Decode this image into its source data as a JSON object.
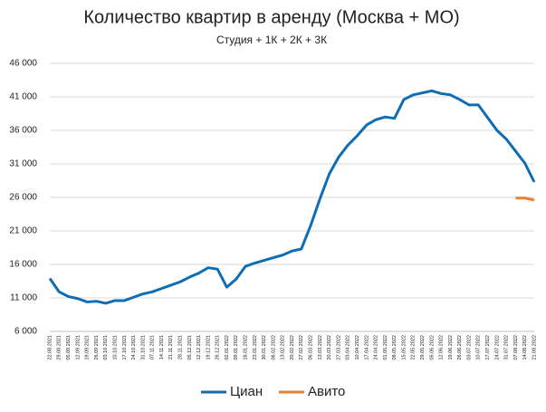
{
  "chart_data": {
    "type": "line",
    "title": "Количество квартир в аренду (Москва + МО)",
    "subtitle": "Студия + 1К + 2К + 3К",
    "categories": [
      "22.08.2021",
      "29.08.2021",
      "05.09.2021",
      "12.09.2021",
      "19.09.2021",
      "26.09.2021",
      "03.10.2021",
      "10.10.2021",
      "17.10.2021",
      "24.10.2021",
      "31.10.2021",
      "07.11.2021",
      "14.11.2021",
      "21.11.2021",
      "28.11.2021",
      "05.12.2021",
      "12.12.2021",
      "19.12.2021",
      "26.12.2021",
      "02.01.2022",
      "09.01.2022",
      "16.01.2022",
      "23.01.2022",
      "30.01.2022",
      "06.02.2022",
      "13.02.2022",
      "20.02.2022",
      "27.02.2022",
      "06.03.2022",
      "13.03.2022",
      "20.03.2022",
      "27.03.2022",
      "03.04.2022",
      "10.04.2022",
      "17.04.2022",
      "24.04.2022",
      "01.05.2022",
      "08.05.2022",
      "15.05.2022",
      "22.05.2022",
      "29.05.2022",
      "05.06.2022",
      "12.06.2022",
      "19.06.2022",
      "26.06.2022",
      "03.07.2022",
      "10.07.2022",
      "17.07.2022",
      "24.07.2022",
      "31.07.2022",
      "07.08.2022",
      "14.08.2022",
      "21.08.2022"
    ],
    "series": [
      {
        "name": "Циан",
        "color": "#0f6db5",
        "values": [
          13900,
          11900,
          11200,
          10900,
          10400,
          10500,
          10200,
          10600,
          10600,
          11100,
          11600,
          11900,
          12400,
          12900,
          13400,
          14100,
          14700,
          15500,
          15300,
          12600,
          13800,
          15700,
          16200,
          16600,
          17000,
          17400,
          18000,
          18300,
          21800,
          25800,
          29500,
          32000,
          33800,
          35200,
          36800,
          37600,
          38000,
          37800,
          40600,
          41300,
          41600,
          41900,
          41500,
          41300,
          40600,
          39800,
          39800,
          37900,
          36000,
          34700,
          32900,
          31100,
          28300
        ]
      },
      {
        "name": "Авито",
        "color": "#ed7d31",
        "values": [
          null,
          null,
          null,
          null,
          null,
          null,
          null,
          null,
          null,
          null,
          null,
          null,
          null,
          null,
          null,
          null,
          null,
          null,
          null,
          null,
          null,
          null,
          null,
          null,
          null,
          null,
          null,
          null,
          null,
          null,
          null,
          null,
          null,
          null,
          null,
          null,
          null,
          null,
          null,
          null,
          null,
          null,
          null,
          null,
          null,
          null,
          null,
          null,
          null,
          null,
          25900,
          25900,
          25600
        ]
      }
    ],
    "ylim": [
      6000,
      46000
    ],
    "yticks": [
      {
        "value": 6000,
        "label": "6 000"
      },
      {
        "value": 11000,
        "label": "11 000"
      },
      {
        "value": 16000,
        "label": "16 000"
      },
      {
        "value": 21000,
        "label": "21 000"
      },
      {
        "value": 26000,
        "label": "26 000"
      },
      {
        "value": 31000,
        "label": "31 000"
      },
      {
        "value": 36000,
        "label": "36 000"
      },
      {
        "value": 41000,
        "label": "41 000"
      },
      {
        "value": 46000,
        "label": "46 000"
      }
    ],
    "grid": true
  }
}
